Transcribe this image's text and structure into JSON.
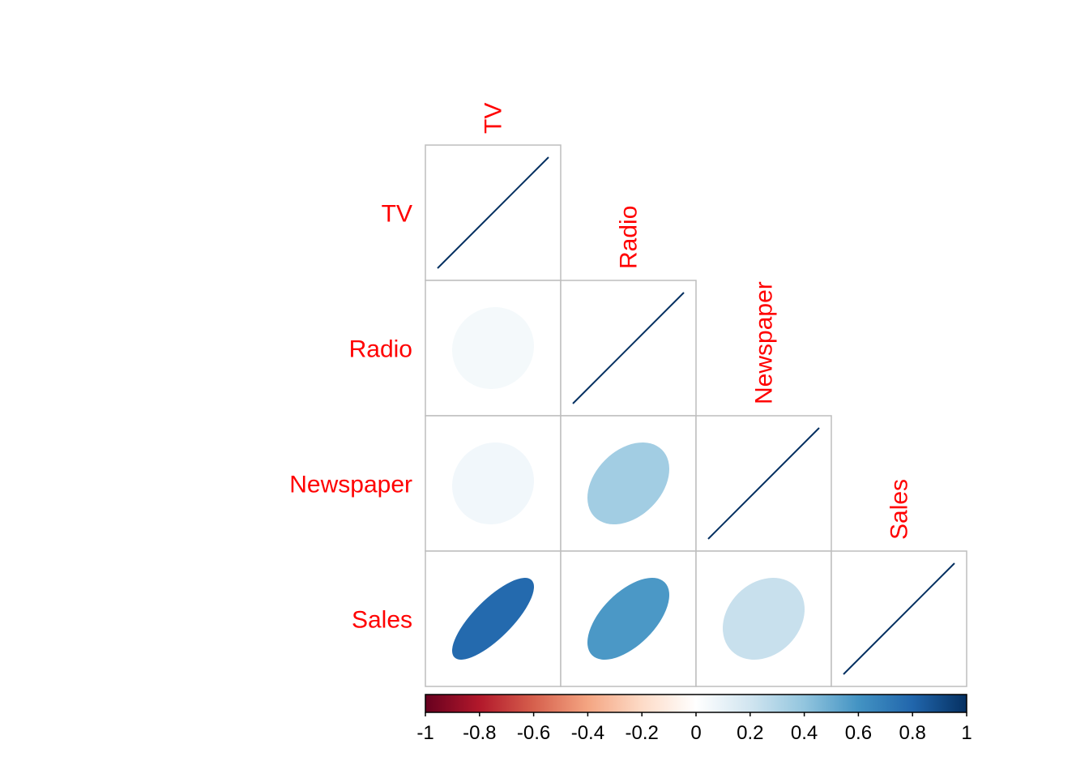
{
  "chart_data": {
    "type": "heatmap",
    "style": "ellipse correlation matrix, lower triangle with diagonal",
    "variables": [
      "TV",
      "Radio",
      "Newspaper",
      "Sales"
    ],
    "matrix": [
      [
        1.0,
        0.05,
        0.06,
        0.78
      ],
      [
        0.05,
        1.0,
        0.35,
        0.58
      ],
      [
        0.06,
        0.35,
        1.0,
        0.23
      ],
      [
        0.78,
        0.58,
        0.23,
        1.0
      ]
    ],
    "label_color": "#FF0000",
    "grid_color": "#BEBEBE",
    "colorbar": {
      "range": [
        -1,
        1
      ],
      "tick_labels": [
        "-1",
        "-0.8",
        "-0.6",
        "-0.4",
        "-0.2",
        "0",
        "0.2",
        "0.4",
        "0.6",
        "0.8",
        "1"
      ],
      "palette": [
        "#67001F",
        "#B2182B",
        "#D6604D",
        "#F4A582",
        "#FDDBC7",
        "#FFFFFF",
        "#D1E5F0",
        "#92C5DE",
        "#4393C3",
        "#2166AC",
        "#053061"
      ]
    }
  }
}
